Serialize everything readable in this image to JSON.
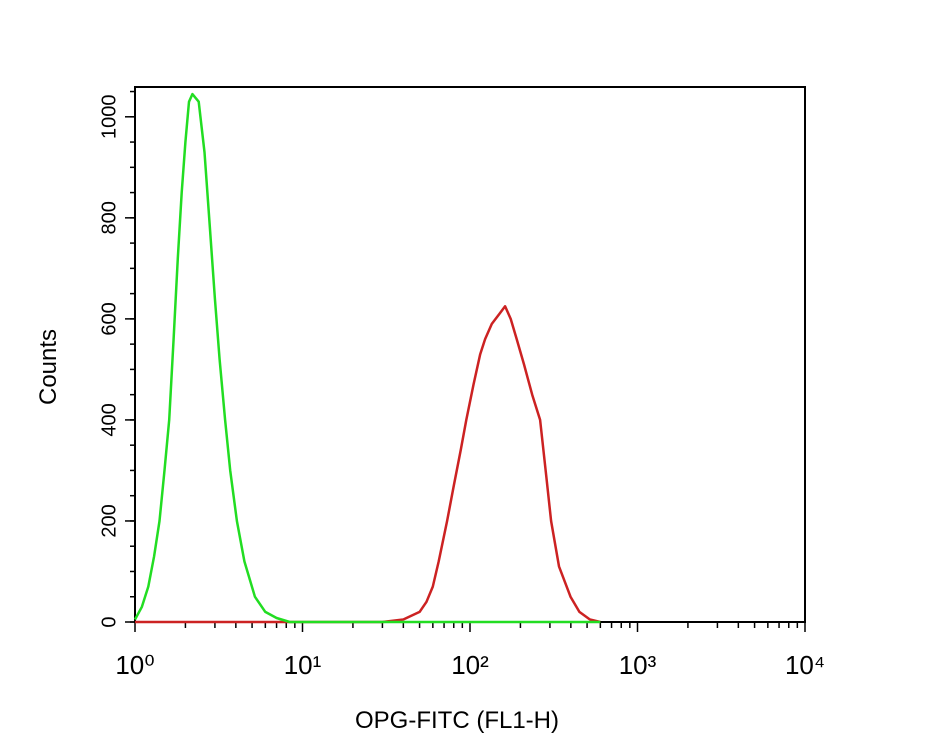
{
  "chart_data": {
    "type": "line",
    "x_label": "OPG-FITC (FL1-H)",
    "y_label": "Counts",
    "log_x": true,
    "xlim": [
      1,
      10000
    ],
    "xticks": [
      {
        "value": 1,
        "label": "10⁰"
      },
      {
        "value": 10,
        "label": "10¹"
      },
      {
        "value": 100,
        "label": "10²"
      },
      {
        "value": 1000,
        "label": "10³"
      },
      {
        "value": 10000,
        "label": "10⁴"
      }
    ],
    "ylim": [
      0,
      1059
    ],
    "yticks": [
      0,
      200,
      400,
      600,
      800,
      1000
    ],
    "series": [
      {
        "color": "#22dd22",
        "x": [
          1.0,
          1.1,
          1.2,
          1.3,
          1.4,
          1.5,
          1.6,
          1.7,
          1.8,
          1.9,
          2.0,
          2.1,
          2.2,
          2.4,
          2.6,
          2.8,
          3.0,
          3.2,
          3.45,
          3.7,
          4.06,
          4.5,
          5.2,
          6,
          7,
          8.4,
          100,
          600
        ],
        "values": [
          5,
          30,
          70,
          130,
          200,
          300,
          400,
          560,
          720,
          850,
          950,
          1030,
          1045,
          1030,
          930,
          780,
          640,
          520,
          400,
          300,
          200,
          120,
          50,
          20,
          8,
          0,
          0,
          0
        ]
      },
      {
        "color": "#cc2222",
        "x": [
          1,
          10,
          30,
          40,
          50,
          55,
          60,
          65,
          73,
          80,
          88,
          95,
          105,
          115,
          123,
          135,
          150,
          162,
          175,
          190,
          210,
          235,
          262,
          285,
          305,
          340,
          398,
          450,
          520,
          600
        ],
        "values": [
          0,
          0,
          0,
          5,
          20,
          40,
          70,
          120,
          200,
          270,
          340,
          400,
          470,
          530,
          560,
          590,
          610,
          625,
          600,
          560,
          510,
          450,
          400,
          290,
          200,
          110,
          50,
          20,
          5,
          0
        ]
      }
    ]
  }
}
